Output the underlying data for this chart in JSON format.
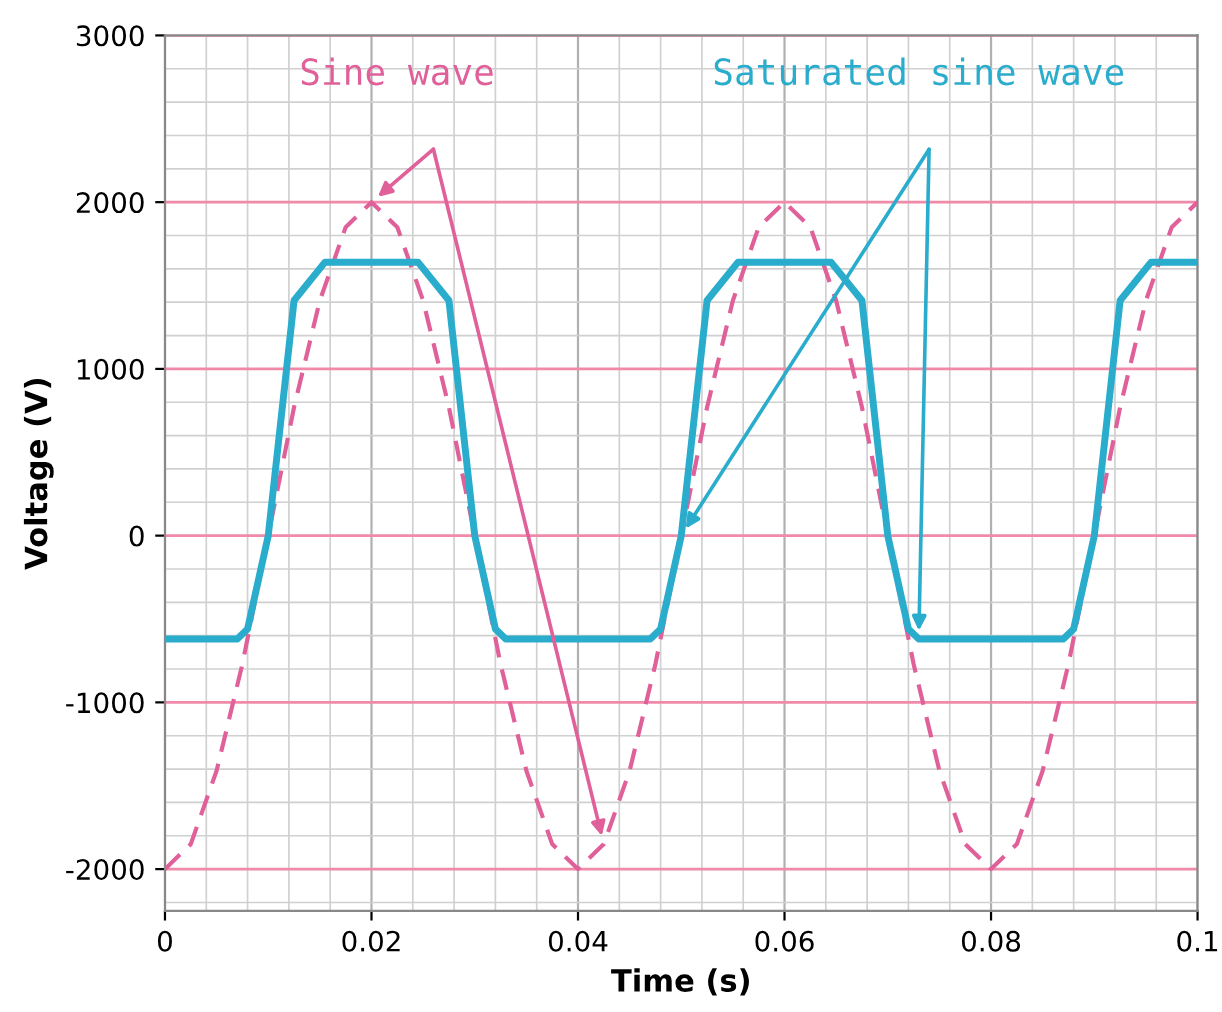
{
  "chart_data": {
    "type": "line",
    "xlabel": "Time (s)",
    "ylabel": "Voltage (V)",
    "xlim": [
      0,
      0.1
    ],
    "ylim": [
      -2250,
      3000
    ],
    "xticks": [
      0,
      0.02,
      0.04,
      0.06,
      0.08,
      0.1
    ],
    "yticks": [
      -2000,
      -1000,
      0,
      1000,
      2000,
      3000
    ],
    "grid": true,
    "series": [
      {
        "name": "Sine wave",
        "color": "#e0609a",
        "line_style": "dashed",
        "x": [
          0,
          0.0025,
          0.005,
          0.0075,
          0.01,
          0.0125,
          0.015,
          0.0175,
          0.02,
          0.0225,
          0.025,
          0.0275,
          0.03,
          0.0325,
          0.035,
          0.0375,
          0.04,
          0.0425,
          0.045,
          0.0475,
          0.05,
          0.0525,
          0.055,
          0.0575,
          0.06,
          0.0625,
          0.065,
          0.0675,
          0.07,
          0.0725,
          0.075,
          0.0775,
          0.08,
          0.0825,
          0.085,
          0.0875,
          0.09,
          0.0925,
          0.095,
          0.0975,
          0.1
        ],
        "values": [
          -2000,
          -1850,
          -1410,
          -770,
          0,
          770,
          1410,
          1850,
          2000,
          1850,
          1410,
          770,
          0,
          -770,
          -1410,
          -1850,
          -2000,
          -1850,
          -1410,
          -770,
          0,
          770,
          1410,
          1850,
          2000,
          1850,
          1410,
          770,
          0,
          -770,
          -1410,
          -1850,
          -2000,
          -1850,
          -1410,
          -770,
          0,
          770,
          1410,
          1850,
          2000
        ]
      },
      {
        "name": "Saturated sine wave",
        "color": "#2aaccc",
        "line_style": "solid",
        "x": [
          0,
          0.007,
          0.008,
          0.01,
          0.0125,
          0.0155,
          0.0245,
          0.0275,
          0.03,
          0.032,
          0.033,
          0.047,
          0.048,
          0.05,
          0.0525,
          0.0555,
          0.0645,
          0.0675,
          0.07,
          0.072,
          0.073,
          0.087,
          0.088,
          0.09,
          0.0925,
          0.0955,
          0.1
        ],
        "values": [
          -620,
          -620,
          -560,
          0,
          1410,
          1640,
          1640,
          1410,
          0,
          -560,
          -620,
          -620,
          -560,
          0,
          1410,
          1640,
          1640,
          1410,
          0,
          -560,
          -620,
          -620,
          -560,
          0,
          1410,
          1640,
          1640
        ]
      }
    ]
  }
}
